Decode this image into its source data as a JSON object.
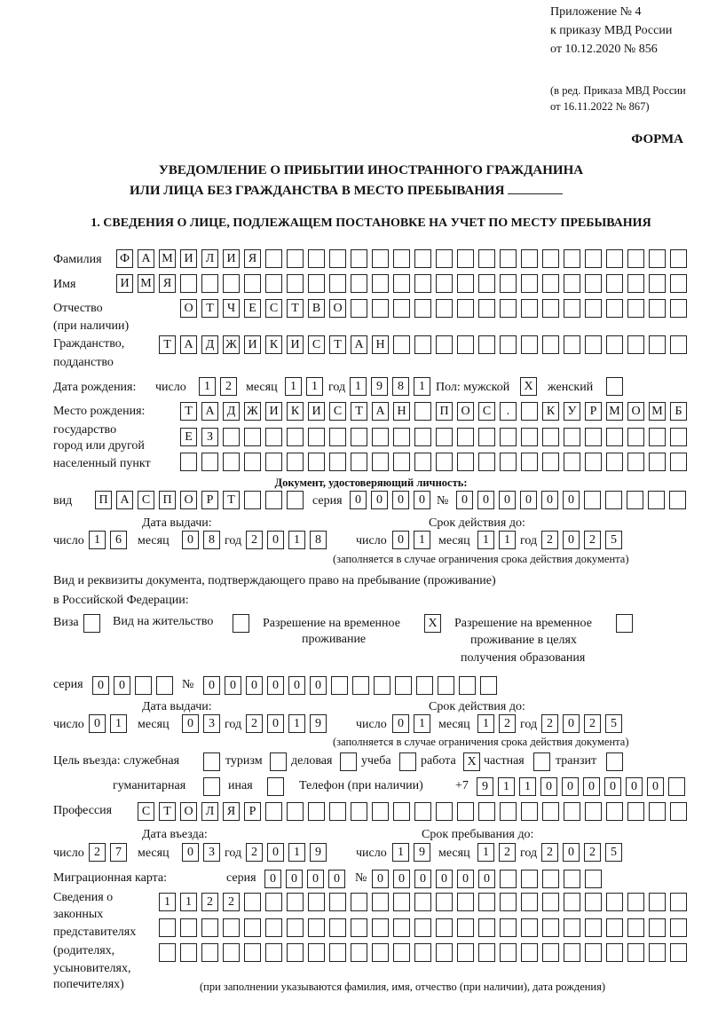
{
  "header": {
    "line1": "Приложение № 4",
    "line2": "к приказу МВД России",
    "line3": "от 10.12.2020 № 856",
    "note1": "(в ред. Приказа МВД России",
    "note2": "от 16.11.2022 № 867)"
  },
  "form_label": "ФОРМА",
  "title": {
    "line1": "УВЕДОМЛЕНИЕ О ПРИБЫТИИ ИНОСТРАННОГО ГРАЖДАНИНА",
    "line2": "ИЛИ ЛИЦА БЕЗ ГРАЖДАНСТВА В МЕСТО ПРЕБЫВАНИЯ"
  },
  "section1": "1. СВЕДЕНИЯ О ЛИЦЕ, ПОДЛЕЖАЩЕМ ПОСТАНОВКЕ НА УЧЕТ ПО МЕСТУ ПРЕБЫВАНИЯ",
  "labels": {
    "surname": "Фамилия",
    "name": "Имя",
    "patronymic": "Отчество",
    "patronymic_note": "(при наличии)",
    "citizenship1": "Гражданство,",
    "citizenship2": "подданство",
    "dob": "Дата рождения:",
    "day": "число",
    "month": "месяц",
    "year": "год",
    "sex_male": "Пол: мужской",
    "sex_female": "женский",
    "birthplace1": "Место рождения:",
    "birthplace2": "государство",
    "birthplace3": "город или другой",
    "birthplace4": "населенный пункт",
    "id_doc": "Документ, удостоверяющий личность:",
    "kind": "вид",
    "series": "серия",
    "number": "№",
    "issue_date": "Дата выдачи:",
    "valid_until": "Срок действия до:",
    "validity_note": "(заполняется в случае ограничения срока действия документа)",
    "permit1": "Вид и реквизиты документа, подтверждающего право на пребывание (проживание)",
    "permit2": "в Российской Федерации:",
    "visa": "Виза",
    "residence": "Вид на жительство",
    "rvp1": "Разрешение на временное",
    "rvp2": "проживание",
    "rvp_edu1": "Разрешение на временное",
    "rvp_edu2": "проживание в целях",
    "rvp_edu3": "получения образования",
    "purpose": "Цель въезда: служебная",
    "tourism": "туризм",
    "business": "деловая",
    "study": "учеба",
    "work": "работа",
    "private": "частная",
    "transit": "транзит",
    "humanitarian": "гуманитарная",
    "other": "иная",
    "phone": "Телефон (при наличии)",
    "phone_prefix": "+7",
    "profession": "Профессия",
    "entry_date": "Дата въезда:",
    "stay_until": "Срок пребывания до:",
    "migration_card": "Миграционная карта:",
    "legal1": "Сведения о",
    "legal2": "законных",
    "legal3": "представителях",
    "legal4": "(родителях,",
    "legal5": "усыновителях,",
    "legal6": "попечителях)",
    "legal_note": "(при заполнении указываются фамилия, имя, отчество (при наличии), дата рождения)"
  },
  "values": {
    "surname": [
      "Ф",
      "А",
      "М",
      "И",
      "Л",
      "И",
      "Я"
    ],
    "name": [
      "И",
      "М",
      "Я"
    ],
    "patronymic": [
      "О",
      "Т",
      "Ч",
      "Е",
      "С",
      "Т",
      "В",
      "О"
    ],
    "citizenship": [
      "Т",
      "А",
      "Д",
      "Ж",
      "И",
      "К",
      "И",
      "С",
      "Т",
      "А",
      "Н"
    ],
    "dob_day": [
      "1",
      "2"
    ],
    "dob_month": [
      "1",
      "1"
    ],
    "dob_year": [
      "1",
      "9",
      "8",
      "1"
    ],
    "sex_male": [
      "X"
    ],
    "sex_female": [
      ""
    ],
    "birthplace_1": [
      "Т",
      "А",
      "Д",
      "Ж",
      "И",
      "К",
      "И",
      "С",
      "Т",
      "А",
      "Н",
      "",
      "П",
      "О",
      "С",
      ".",
      "",
      "К",
      "У",
      "Р",
      "М",
      "О",
      "М",
      "Б"
    ],
    "birthplace_2": [
      "Е",
      "З"
    ],
    "birthplace_3": [],
    "doc_kind": [
      "П",
      "А",
      "С",
      "П",
      "О",
      "Р",
      "Т"
    ],
    "doc_series": [
      "0",
      "0",
      "0",
      "0"
    ],
    "doc_number": [
      "0",
      "0",
      "0",
      "0",
      "0",
      "0"
    ],
    "doc_issue_day": [
      "1",
      "6"
    ],
    "doc_issue_month": [
      "0",
      "8"
    ],
    "doc_issue_year": [
      "2",
      "0",
      "1",
      "8"
    ],
    "doc_valid_day": [
      "0",
      "1"
    ],
    "doc_valid_month": [
      "1",
      "1"
    ],
    "doc_valid_year": [
      "2",
      "0",
      "2",
      "5"
    ],
    "permit_visa": [
      ""
    ],
    "permit_residence": [
      ""
    ],
    "permit_rvp": [
      "X"
    ],
    "permit_rvp_edu": [
      ""
    ],
    "permit_series": [
      "0",
      "0"
    ],
    "permit_number": [
      "0",
      "0",
      "0",
      "0",
      "0",
      "0"
    ],
    "permit_issue_day": [
      "0",
      "1"
    ],
    "permit_issue_month": [
      "0",
      "3"
    ],
    "permit_issue_year": [
      "2",
      "0",
      "1",
      "9"
    ],
    "permit_valid_day": [
      "0",
      "1"
    ],
    "permit_valid_month": [
      "1",
      "2"
    ],
    "permit_valid_year": [
      "2",
      "0",
      "2",
      "5"
    ],
    "purpose_official": [
      ""
    ],
    "purpose_tourism": [
      ""
    ],
    "purpose_business": [
      ""
    ],
    "purpose_study": [
      ""
    ],
    "purpose_work": [
      "X"
    ],
    "purpose_private": [
      ""
    ],
    "purpose_transit": [
      ""
    ],
    "purpose_humanitarian": [
      ""
    ],
    "purpose_other": [
      ""
    ],
    "phone": [
      "9",
      "1",
      "1",
      "0",
      "0",
      "0",
      "0",
      "0",
      "0"
    ],
    "profession": [
      "С",
      "Т",
      "О",
      "Л",
      "Я",
      "Р"
    ],
    "entry_day": [
      "2",
      "7"
    ],
    "entry_month": [
      "0",
      "3"
    ],
    "entry_year": [
      "2",
      "0",
      "1",
      "9"
    ],
    "stay_day": [
      "1",
      "9"
    ],
    "stay_month": [
      "1",
      "2"
    ],
    "stay_year": [
      "2",
      "0",
      "2",
      "5"
    ],
    "migration_series": [
      "0",
      "0",
      "0",
      "0"
    ],
    "migration_number": [
      "0",
      "0",
      "0",
      "0",
      "0",
      "0"
    ],
    "legal_1": [
      "1",
      "1",
      "2",
      "2"
    ],
    "legal_2": [],
    "legal_3": []
  }
}
